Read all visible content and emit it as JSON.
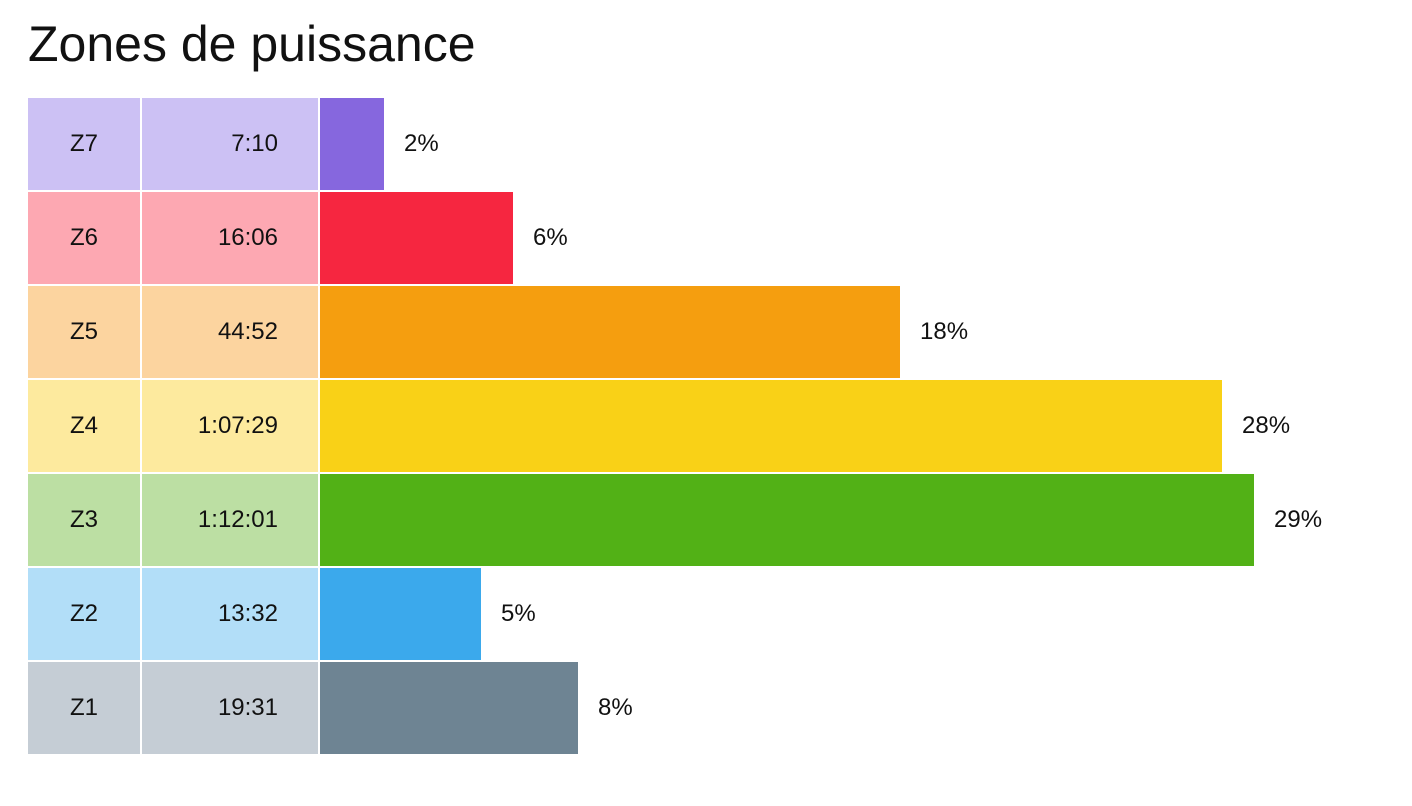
{
  "title": "Zones de puissance",
  "chart_data": {
    "type": "bar",
    "orientation": "horizontal",
    "title": "Zones de puissance",
    "xlabel": "",
    "ylabel": "",
    "grid": false,
    "xlim": [
      0,
      29
    ],
    "categories": [
      "Z7",
      "Z6",
      "Z5",
      "Z4",
      "Z3",
      "Z2",
      "Z1"
    ],
    "durations": [
      "7:10",
      "16:06",
      "44:52",
      "1:07:29",
      "1:12:01",
      "13:32",
      "19:31"
    ],
    "values": [
      2,
      6,
      18,
      28,
      29,
      5,
      8
    ],
    "value_labels": [
      "2%",
      "6%",
      "18%",
      "28%",
      "29%",
      "5%",
      "8%"
    ],
    "bar_colors": [
      "#8667DE",
      "#F62640",
      "#F59E0F",
      "#F9D117",
      "#52B116",
      "#3BA9EC",
      "#6E8493"
    ],
    "label_colors": [
      "#CCC1F4",
      "#FDA8B2",
      "#FCD49F",
      "#FDEA9E",
      "#BCDFA3",
      "#B2DEF8",
      "#C5CDD5"
    ]
  }
}
